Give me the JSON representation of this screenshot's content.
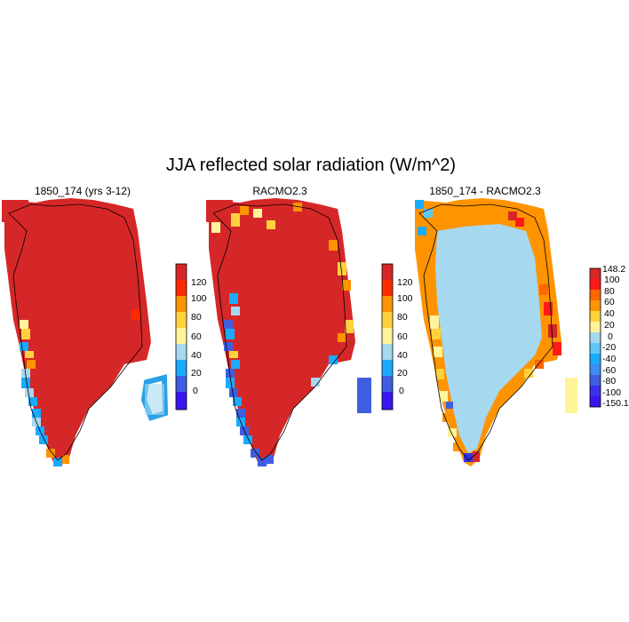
{
  "figure": {
    "title": "JJA reflected solar radiation (W/m^2)"
  },
  "panels": [
    {
      "title": "1850_174 (yrs 3-12)",
      "colorbar": {
        "labels": [
          "120",
          "100",
          "80",
          "60",
          "40",
          "20",
          "0"
        ],
        "colors": [
          "#d62728",
          "#ff2a00",
          "#ff9400",
          "#ffd23d",
          "#fff49a",
          "#a6d8f0",
          "#1aabff",
          "#3f5fe0",
          "#3b15ee"
        ]
      }
    },
    {
      "title": "RACMO2.3",
      "colorbar": {
        "labels": [
          "120",
          "100",
          "80",
          "60",
          "40",
          "20",
          "0"
        ],
        "colors": [
          "#d62728",
          "#ff2a00",
          "#ff9400",
          "#ffd23d",
          "#fff49a",
          "#a6d8f0",
          "#1aabff",
          "#3f5fe0",
          "#3b15ee"
        ]
      }
    },
    {
      "title": "1850_174 - RACMO2.3",
      "colorbar": {
        "labels": [
          "148.2",
          "100",
          "80",
          "60",
          "40",
          "20",
          "0",
          "-20",
          "-40",
          "-60",
          "-80",
          "-100",
          "-150.1"
        ],
        "colors": [
          "#d62728",
          "#ff1a1a",
          "#ff6600",
          "#ff9400",
          "#ffd23d",
          "#fff49a",
          "#a6d8f0",
          "#5fc8f5",
          "#1aabff",
          "#3f8ef0",
          "#3f5fe0",
          "#3b2ee8",
          "#3b15ee"
        ]
      }
    }
  ]
}
